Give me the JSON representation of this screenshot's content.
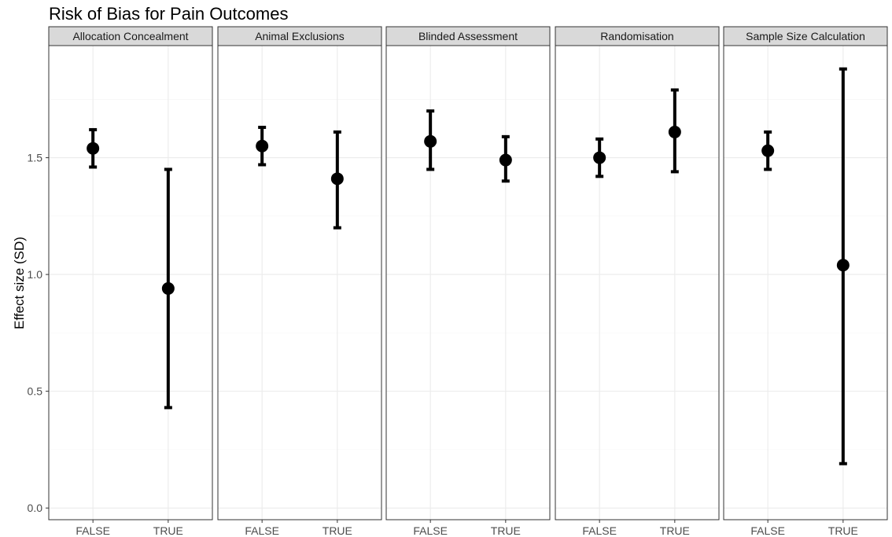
{
  "chart_data": {
    "type": "scatter",
    "subtype": "faceted point with error bars",
    "title": "Risk of Bias for Pain Outcomes",
    "xlabel": "",
    "ylabel": "Effect size (SD)",
    "ylim": [
      -0.05,
      1.98
    ],
    "yticks": [
      0.0,
      0.5,
      1.0,
      1.5
    ],
    "ytick_labels": [
      "0.0",
      "0.5",
      "1.0",
      "1.5"
    ],
    "categories": [
      "FALSE",
      "TRUE"
    ],
    "grid": true,
    "facets": [
      {
        "name": "Allocation Concealment",
        "points": [
          {
            "x": "FALSE",
            "y": 1.54,
            "ymin": 1.46,
            "ymax": 1.62
          },
          {
            "x": "TRUE",
            "y": 0.94,
            "ymin": 0.43,
            "ymax": 1.45
          }
        ]
      },
      {
        "name": "Animal Exclusions",
        "points": [
          {
            "x": "FALSE",
            "y": 1.55,
            "ymin": 1.47,
            "ymax": 1.63
          },
          {
            "x": "TRUE",
            "y": 1.41,
            "ymin": 1.2,
            "ymax": 1.61
          }
        ]
      },
      {
        "name": "Blinded Assessment",
        "points": [
          {
            "x": "FALSE",
            "y": 1.57,
            "ymin": 1.45,
            "ymax": 1.7
          },
          {
            "x": "TRUE",
            "y": 1.49,
            "ymin": 1.4,
            "ymax": 1.59
          }
        ]
      },
      {
        "name": "Randomisation",
        "points": [
          {
            "x": "FALSE",
            "y": 1.5,
            "ymin": 1.42,
            "ymax": 1.58
          },
          {
            "x": "TRUE",
            "y": 1.61,
            "ymin": 1.44,
            "ymax": 1.79
          }
        ]
      },
      {
        "name": "Sample Size Calculation",
        "points": [
          {
            "x": "FALSE",
            "y": 1.53,
            "ymin": 1.45,
            "ymax": 1.61
          },
          {
            "x": "TRUE",
            "y": 1.04,
            "ymin": 0.19,
            "ymax": 1.88
          }
        ]
      }
    ]
  }
}
